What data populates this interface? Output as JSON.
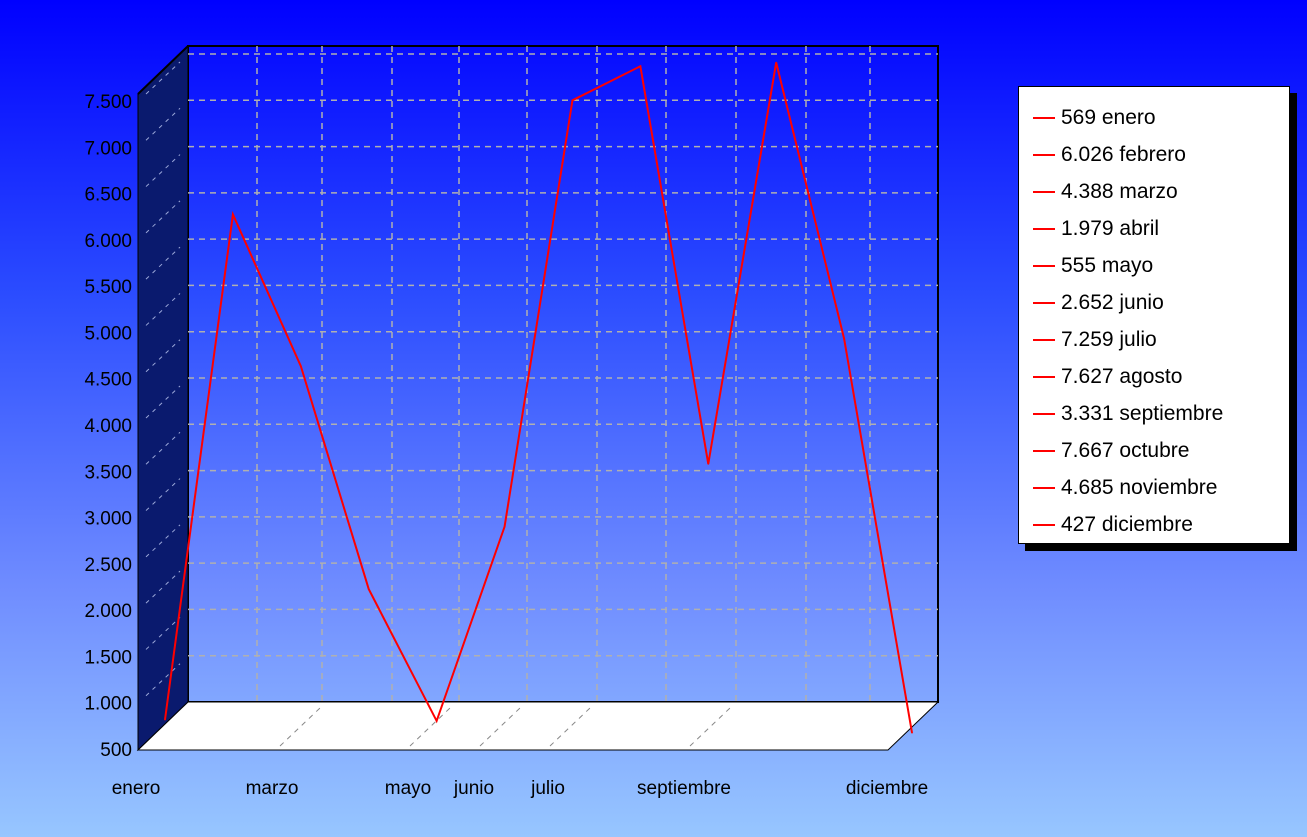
{
  "chart_data": {
    "type": "line",
    "style": "3d",
    "categories": [
      "enero",
      "febrero",
      "marzo",
      "abril",
      "mayo",
      "junio",
      "julio",
      "agosto",
      "septiembre",
      "octubre",
      "noviembre",
      "diciembre"
    ],
    "x_tick_labels": [
      "enero",
      "marzo",
      "mayo",
      "junio",
      "julio",
      "septiembre",
      "diciembre"
    ],
    "series": [
      {
        "values": [
          569,
          6026,
          4388,
          1979,
          555,
          2652,
          7259,
          7627,
          3331,
          7667,
          4685,
          427
        ],
        "color": "#ff0000"
      }
    ],
    "y_ticks": [
      "500",
      "1.000",
      "1.500",
      "2.000",
      "2.500",
      "3.000",
      "3.500",
      "4.000",
      "4.500",
      "5.000",
      "5.500",
      "6.000",
      "6.500",
      "7.000",
      "7.500"
    ],
    "ylim": [
      500,
      7500
    ],
    "grid": true,
    "legend_position": "right",
    "legend": [
      "569 enero",
      "6.026 febrero",
      "4.388 marzo",
      "1.979 abril",
      "555 mayo",
      "2.652 junio",
      "7.259 julio",
      "7.627 agosto",
      "3.331 septiembre",
      "7.667 octubre",
      "4.685 noviembre",
      "427 diciembre"
    ],
    "colors": {
      "background_top": "#0000ff",
      "background_bottom": "#97c6ff",
      "line": "#ff0000",
      "side_wall": "#0a1a6e",
      "floor": "#ffffff"
    }
  }
}
